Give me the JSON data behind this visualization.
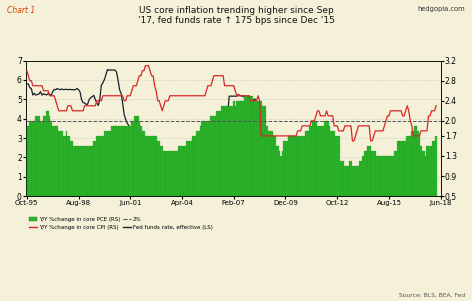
{
  "title_line1": "US core inflation trending higher since Sep",
  "title_line2": "'17, fed funds rate ↑ 175 bps since Dec '15",
  "chart_label": "Chart 1",
  "source_label": "Source: BLS, BEA, Fed",
  "website": "hedgopia.com",
  "left_ylim": [
    0,
    7
  ],
  "right_ylim": [
    0.5,
    3.2
  ],
  "left_yticks": [
    0,
    1,
    2,
    3,
    4,
    5,
    6,
    7
  ],
  "right_yticks": [
    0.5,
    0.9,
    1.3,
    1.7,
    2.0,
    2.4,
    2.8,
    3.2
  ],
  "bg_color": "#f5f0d8",
  "bar_color": "#2db82d",
  "bar_edge_color": "#1a8a1a",
  "cpi_color": "#d62728",
  "ffr_color": "#17202a",
  "legend_dashed_color": "#555555",
  "xtick_labels": [
    "Oct-95",
    "Aug-98",
    "Jun-01",
    "Apr-04",
    "Feb-07",
    "Dec-09",
    "Oct-12",
    "Aug-15",
    "Jun-18"
  ],
  "xtick_positions": [
    0,
    34,
    68,
    102,
    136,
    170,
    204,
    238,
    272
  ],
  "core_pce": [
    1.9,
    1.9,
    2.0,
    2.0,
    2.0,
    2.0,
    2.1,
    2.1,
    2.1,
    2.0,
    2.0,
    2.1,
    2.1,
    2.2,
    2.2,
    2.1,
    2.0,
    1.9,
    1.9,
    1.9,
    1.9,
    1.8,
    1.8,
    1.8,
    1.7,
    1.7,
    1.8,
    1.7,
    1.7,
    1.6,
    1.6,
    1.5,
    1.5,
    1.5,
    1.5,
    1.5,
    1.5,
    1.5,
    1.5,
    1.5,
    1.5,
    1.5,
    1.5,
    1.5,
    1.6,
    1.6,
    1.7,
    1.7,
    1.7,
    1.7,
    1.7,
    1.8,
    1.8,
    1.8,
    1.8,
    1.8,
    1.9,
    1.9,
    1.9,
    1.9,
    1.9,
    1.9,
    1.9,
    1.9,
    1.9,
    1.9,
    1.9,
    1.9,
    1.9,
    2.0,
    2.0,
    2.1,
    2.1,
    2.1,
    2.0,
    1.9,
    1.8,
    1.8,
    1.7,
    1.7,
    1.7,
    1.7,
    1.7,
    1.7,
    1.7,
    1.7,
    1.6,
    1.6,
    1.5,
    1.5,
    1.4,
    1.4,
    1.4,
    1.4,
    1.4,
    1.4,
    1.4,
    1.4,
    1.4,
    1.4,
    1.5,
    1.5,
    1.5,
    1.5,
    1.5,
    1.6,
    1.6,
    1.6,
    1.6,
    1.7,
    1.7,
    1.7,
    1.8,
    1.8,
    1.9,
    2.0,
    2.0,
    2.0,
    2.0,
    2.0,
    2.0,
    2.1,
    2.1,
    2.1,
    2.1,
    2.2,
    2.2,
    2.2,
    2.3,
    2.3,
    2.3,
    2.3,
    2.3,
    2.3,
    2.3,
    2.3,
    2.4,
    2.3,
    2.4,
    2.4,
    2.4,
    2.4,
    2.4,
    2.5,
    2.5,
    2.5,
    2.5,
    2.5,
    2.5,
    2.4,
    2.4,
    2.4,
    2.4,
    2.4,
    2.4,
    2.3,
    2.3,
    2.3,
    1.9,
    1.8,
    1.8,
    1.8,
    1.7,
    1.7,
    1.5,
    1.5,
    1.4,
    1.3,
    1.4,
    1.6,
    1.6,
    1.6,
    1.7,
    1.7,
    1.7,
    1.7,
    1.7,
    1.7,
    1.7,
    1.7,
    1.7,
    1.7,
    1.7,
    1.8,
    1.8,
    1.8,
    1.9,
    1.9,
    2.0,
    2.0,
    2.0,
    1.9,
    1.9,
    1.9,
    1.9,
    1.9,
    2.0,
    2.0,
    2.0,
    1.9,
    1.8,
    1.8,
    1.8,
    1.7,
    1.7,
    1.7,
    1.2,
    1.2,
    1.2,
    1.1,
    1.1,
    1.1,
    1.2,
    1.2,
    1.1,
    1.1,
    1.1,
    1.1,
    1.1,
    1.2,
    1.2,
    1.3,
    1.4,
    1.4,
    1.5,
    1.5,
    1.5,
    1.4,
    1.4,
    1.4,
    1.3,
    1.3,
    1.3,
    1.3,
    1.3,
    1.3,
    1.3,
    1.3,
    1.3,
    1.3,
    1.3,
    1.3,
    1.4,
    1.4,
    1.6,
    1.6,
    1.6,
    1.6,
    1.6,
    1.6,
    1.7,
    1.7,
    1.7,
    1.8,
    1.8,
    1.9,
    1.9,
    1.8,
    1.7,
    1.5,
    1.4,
    1.4,
    1.3,
    1.5,
    1.5,
    1.5,
    1.5,
    1.6,
    1.6,
    1.7,
    1.8,
    1.9,
    2.0,
    2.0
  ],
  "core_cpi": [
    3.0,
    2.9,
    2.8,
    2.8,
    2.7,
    2.7,
    2.7,
    2.7,
    2.7,
    2.7,
    2.7,
    2.6,
    2.6,
    2.6,
    2.6,
    2.5,
    2.5,
    2.5,
    2.5,
    2.4,
    2.3,
    2.2,
    2.2,
    2.2,
    2.2,
    2.2,
    2.2,
    2.3,
    2.3,
    2.3,
    2.2,
    2.2,
    2.2,
    2.2,
    2.2,
    2.2,
    2.2,
    2.2,
    2.3,
    2.3,
    2.3,
    2.3,
    2.3,
    2.3,
    2.3,
    2.3,
    2.4,
    2.4,
    2.4,
    2.4,
    2.5,
    2.5,
    2.5,
    2.5,
    2.5,
    2.5,
    2.5,
    2.5,
    2.5,
    2.5,
    2.5,
    2.5,
    2.5,
    2.5,
    2.4,
    2.4,
    2.5,
    2.5,
    2.5,
    2.6,
    2.7,
    2.7,
    2.7,
    2.8,
    2.9,
    2.9,
    3.0,
    3.0,
    3.1,
    3.1,
    3.1,
    3.0,
    2.9,
    2.9,
    2.7,
    2.6,
    2.4,
    2.4,
    2.3,
    2.2,
    2.3,
    2.4,
    2.4,
    2.4,
    2.5,
    2.5,
    2.5,
    2.5,
    2.5,
    2.5,
    2.5,
    2.5,
    2.5,
    2.5,
    2.5,
    2.5,
    2.5,
    2.5,
    2.5,
    2.5,
    2.5,
    2.5,
    2.5,
    2.5,
    2.5,
    2.5,
    2.5,
    2.5,
    2.6,
    2.7,
    2.7,
    2.7,
    2.8,
    2.9,
    2.9,
    2.9,
    2.9,
    2.9,
    2.9,
    2.9,
    2.7,
    2.7,
    2.7,
    2.7,
    2.7,
    2.7,
    2.7,
    2.6,
    2.5,
    2.5,
    2.5,
    2.5,
    2.5,
    2.5,
    2.5,
    2.5,
    2.5,
    2.4,
    2.4,
    2.4,
    2.4,
    2.4,
    2.5,
    2.4,
    1.7,
    1.7,
    1.7,
    1.7,
    1.7,
    1.7,
    1.7,
    1.7,
    1.7,
    1.7,
    1.7,
    1.7,
    1.7,
    1.7,
    1.7,
    1.7,
    1.7,
    1.7,
    1.7,
    1.7,
    1.7,
    1.7,
    1.7,
    1.7,
    1.8,
    1.8,
    1.8,
    1.9,
    1.9,
    1.9,
    1.9,
    1.9,
    1.9,
    2.0,
    2.0,
    2.0,
    2.1,
    2.2,
    2.2,
    2.1,
    2.1,
    2.1,
    2.1,
    2.2,
    2.1,
    2.1,
    2.1,
    2.1,
    1.9,
    1.9,
    1.9,
    1.8,
    1.8,
    1.8,
    1.8,
    1.9,
    1.9,
    1.9,
    1.9,
    1.9,
    1.6,
    1.6,
    1.7,
    1.8,
    1.9,
    1.9,
    1.9,
    1.9,
    1.9,
    1.9,
    1.9,
    1.9,
    1.6,
    1.6,
    1.7,
    1.8,
    1.8,
    1.8,
    1.8,
    1.8,
    1.8,
    1.9,
    2.0,
    2.1,
    2.1,
    2.2,
    2.2,
    2.2,
    2.2,
    2.2,
    2.2,
    2.2,
    2.2,
    2.1,
    2.1,
    2.2,
    2.3,
    2.2,
    2.0,
    1.9,
    1.7,
    1.7,
    1.7,
    1.7,
    1.7,
    1.8,
    1.8,
    1.8,
    1.8,
    1.8,
    2.1,
    2.1,
    2.2,
    2.2,
    2.2,
    2.3
  ],
  "fed_funds_rate": [
    5.79,
    5.8,
    5.6,
    5.56,
    5.22,
    5.31,
    5.22,
    5.25,
    5.27,
    5.4,
    5.22,
    5.29,
    5.25,
    5.23,
    5.3,
    5.25,
    5.19,
    5.39,
    5.51,
    5.5,
    5.56,
    5.52,
    5.5,
    5.54,
    5.5,
    5.51,
    5.52,
    5.5,
    5.51,
    5.51,
    5.5,
    5.49,
    5.5,
    5.56,
    5.5,
    5.38,
    4.98,
    4.83,
    4.81,
    4.74,
    4.75,
    5.0,
    5.09,
    5.13,
    5.21,
    5.0,
    4.82,
    4.68,
    5.02,
    5.73,
    5.85,
    6.02,
    6.27,
    6.54,
    6.5,
    6.52,
    6.52,
    6.51,
    6.51,
    6.4,
    5.98,
    5.49,
    5.31,
    4.8,
    4.21,
    3.97,
    3.77,
    3.65,
    3.02,
    2.5,
    2.09,
    1.82,
    1.73,
    1.75,
    1.73,
    1.75,
    1.75,
    1.75,
    1.73,
    1.75,
    1.75,
    1.75,
    1.75,
    1.24,
    1.24,
    1.25,
    1.25,
    1.25,
    1.25,
    1.25,
    1.25,
    1.0,
    1.0,
    1.0,
    1.0,
    1.0,
    1.0,
    1.0,
    1.0,
    1.0,
    1.0,
    1.25,
    1.25,
    1.25,
    1.5,
    1.5,
    1.75,
    1.75,
    2.0,
    2.09,
    2.25,
    2.4,
    2.5,
    2.5,
    2.5,
    2.5,
    2.5,
    2.5,
    2.5,
    2.25,
    2.4,
    2.51,
    2.63,
    2.7,
    2.94,
    3.09,
    3.21,
    3.25,
    3.25,
    3.25,
    3.25,
    3.25,
    4.25,
    5.16,
    5.17,
    5.16,
    5.17,
    5.16,
    5.17,
    5.25,
    5.19,
    5.18,
    5.16,
    5.12,
    5.02,
    4.94,
    5.18,
    5.02,
    4.94,
    4.99,
    5.02,
    2.0,
    1.97,
    1.07,
    0.39,
    0.25,
    0.22,
    0.22,
    0.18,
    0.15,
    0.18,
    0.22,
    0.16,
    0.16,
    0.15,
    0.12,
    0.12,
    0.12,
    0.11,
    0.13,
    0.16,
    0.2,
    0.2,
    0.18,
    0.19,
    0.19,
    0.19,
    0.19,
    0.19,
    0.22,
    0.17,
    0.22,
    0.31,
    0.37,
    0.37,
    0.37,
    0.41,
    0.43,
    0.44,
    0.47,
    0.47,
    0.54,
    0.65,
    0.65,
    0.65,
    0.91,
    0.91,
    0.65,
    0.4,
    0.4,
    0.4,
    0.4,
    0.41,
    0.54,
    0.66,
    0.66,
    0.79,
    0.91,
    0.91,
    0.91,
    0.91,
    0.91,
    0.91,
    0.91,
    1.16,
    1.16,
    1.16,
    1.16,
    1.16,
    1.41,
    1.41,
    1.41,
    1.41,
    1.41,
    1.41,
    1.41,
    1.41,
    1.41,
    0.12,
    0.11,
    0.11,
    0.12,
    0.12,
    0.12,
    0.11,
    0.13,
    0.14,
    0.12,
    0.12,
    0.24,
    0.34,
    0.38,
    0.51,
    0.37,
    0.37,
    0.38,
    0.4,
    0.4,
    0.4,
    0.4,
    0.41,
    0.54,
    0.66,
    0.66,
    0.79,
    0.91,
    0.91,
    0.91,
    0.91,
    0.91,
    1.15,
    1.16,
    1.16,
    1.41,
    1.41,
    1.42,
    1.51,
    1.69,
    1.7,
    1.91,
    1.92,
    1.93
  ]
}
